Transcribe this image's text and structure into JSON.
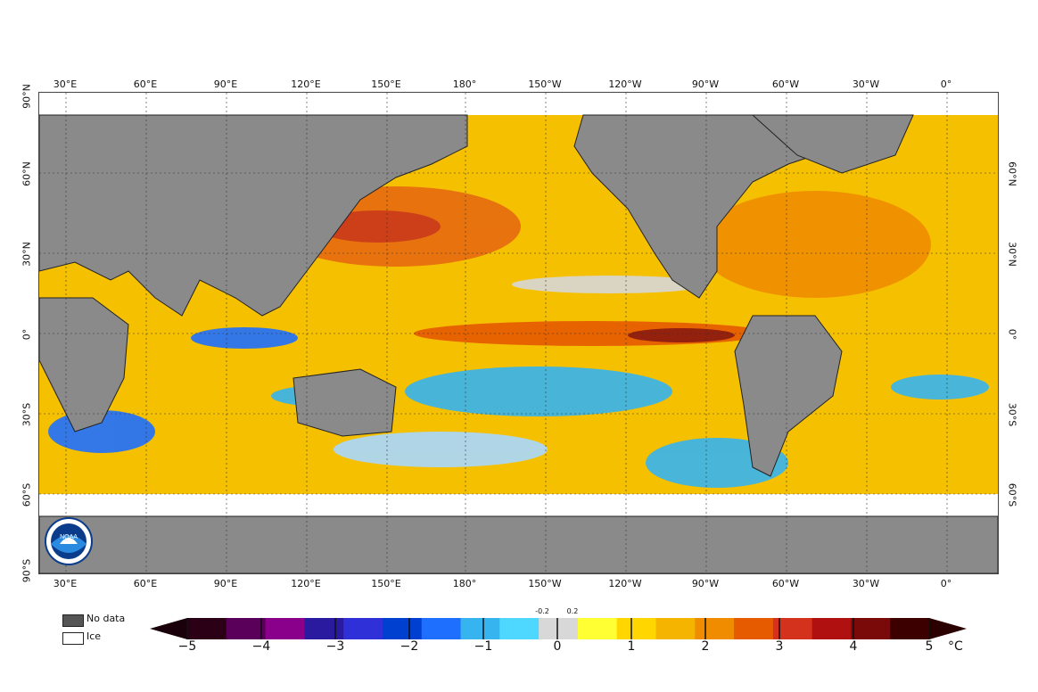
{
  "map": {
    "lon_labels": [
      "30°E",
      "60°E",
      "90°E",
      "120°E",
      "150°E",
      "180°",
      "150°W",
      "120°W",
      "90°W",
      "60°W",
      "30°W",
      "0°"
    ],
    "lat_labels_left": [
      "90°N",
      "60°N",
      "30°N",
      "0°",
      "30°S",
      "60°S",
      "90°S"
    ],
    "lat_labels_right": [
      "60°N",
      "30°N",
      "0°",
      "30°S",
      "60°S"
    ],
    "colors": {
      "land": "#8a8a8a",
      "ice": "#ffffff",
      "warm": "#f5b400",
      "hot": "#d4321c",
      "cool": "#36b4f0",
      "neutral": "#d8d8d8"
    }
  },
  "legend": {
    "no_data_label": "No data",
    "ice_label": "Ice"
  },
  "colorbar": {
    "ticks": [
      "−5",
      "−4",
      "−3",
      "−2",
      "−1",
      "0",
      "1",
      "2",
      "3",
      "4",
      "5"
    ],
    "small_ticks": [
      "-0.2",
      "0.2"
    ],
    "unit": "°C",
    "colors": [
      "#2b0017",
      "#5a005a",
      "#8b008b",
      "#2a1aa0",
      "#3030d8",
      "#0040d0",
      "#1f6fff",
      "#36b4f0",
      "#4fd8ff",
      "#d8d8d8",
      "#ffff33",
      "#ffd600",
      "#f5b400",
      "#f08c00",
      "#e65a00",
      "#d4321c",
      "#b01010",
      "#7a0a0a",
      "#3d0000"
    ]
  },
  "logo": {
    "text": "NOAA",
    "colors": {
      "outer": "#ffffff",
      "ring": "#0b3c8c",
      "inner": "#2a8ae0"
    }
  }
}
